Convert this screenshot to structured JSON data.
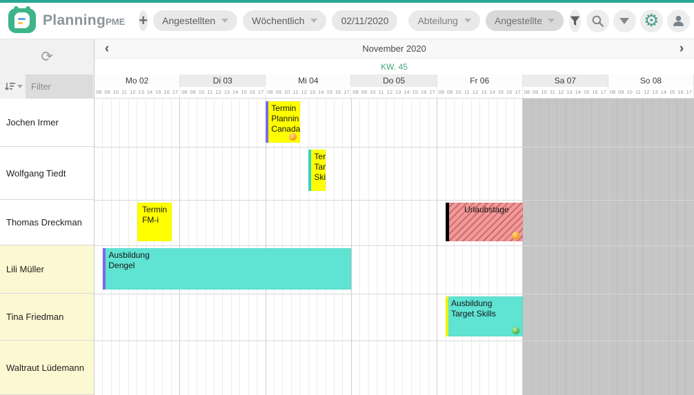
{
  "brand_colors": {
    "accent": "#2aa795",
    "logo_green": "#3eb489",
    "gear_green": "#4a9d8f",
    "kw_green": "#3fa876",
    "weekend_gray": "#c6c6c6",
    "row_highlight": "#fcf8d2"
  },
  "icons": {
    "plus": "+",
    "refresh": "⟳",
    "gear": "⚙",
    "prev": "‹",
    "next": "›"
  },
  "toolbar": {
    "brand": "Planning",
    "brand_suffix": "PME",
    "view_entity": "Angestellten",
    "view_mode": "Wöchentlich",
    "date": "02/11/2020",
    "filter_department": "Abteilung",
    "filter_employee": "Angestellte"
  },
  "sidebar": {
    "filter_placeholder": "Filter",
    "employees": [
      {
        "name": "Jochen Irmer",
        "highlighted": false
      },
      {
        "name": "Wolfgang Tiedt",
        "highlighted": false
      },
      {
        "name": "Thomas Dreckman",
        "highlighted": false
      },
      {
        "name": "Lili Müller",
        "highlighted": true
      },
      {
        "name": "Tina Friedman",
        "highlighted": true
      },
      {
        "name": "Waltraut Lüdemann",
        "highlighted": true
      }
    ]
  },
  "calendar": {
    "title": "November 2020",
    "week_label": "KW. 45",
    "days": [
      {
        "label": "Mo 02",
        "weekend": false
      },
      {
        "label": "Di 03",
        "weekend": false
      },
      {
        "label": "Mi 04",
        "weekend": false
      },
      {
        "label": "Do 05",
        "weekend": false
      },
      {
        "label": "Fr 06",
        "weekend": false
      },
      {
        "label": "Sa 07",
        "weekend": true
      },
      {
        "label": "So 08",
        "weekend": true
      }
    ],
    "hours": [
      "08",
      "09",
      "10",
      "11",
      "12",
      "13",
      "14",
      "15",
      "16",
      "17"
    ],
    "events": [
      {
        "employee": "Jochen Irmer",
        "row": 0,
        "text": "Termin\nPlannin\nCanada",
        "day_start": 2,
        "hour_start": 8,
        "day_end": 2,
        "hour_end": 12,
        "bg": "#ffff00",
        "stripe": "#7b68ee",
        "align": "left",
        "hatched": false,
        "emoji": "orange"
      },
      {
        "employee": "Wolfgang Tiedt",
        "row": 1,
        "text": "Ter\nTar\nSkil",
        "day_start": 2,
        "hour_start": 13,
        "day_end": 2,
        "hour_end": 15,
        "bg": "#ffff00",
        "stripe": "#2fd6c6",
        "align": "left",
        "hatched": false,
        "emoji": null
      },
      {
        "employee": "Thomas Dreckman",
        "row": 2,
        "text": "Termin\nFM-i",
        "day_start": 0,
        "hour_start": 13,
        "day_end": 0,
        "hour_end": 17,
        "bg": "#ffff00",
        "stripe": null,
        "align": "left",
        "hatched": false,
        "emoji": null
      },
      {
        "employee": "Thomas Dreckman",
        "row": 2,
        "text": "Urlaubstage",
        "day_start": 4,
        "hour_start": 9,
        "day_end": 4,
        "hour_end": 18,
        "bg": "#ef9b9b",
        "stripe": "#000000",
        "align": "center",
        "hatched": true,
        "emoji": "orange"
      },
      {
        "employee": "Lili Müller",
        "row": 3,
        "text": "Ausbildung\nDengel",
        "day_start": 0,
        "hour_start": 9,
        "day_end": 2,
        "hour_end": 18,
        "bg": "#5fe3d3",
        "stripe": "#7b68ee",
        "align": "left",
        "hatched": false,
        "emoji": null
      },
      {
        "employee": "Tina Friedman",
        "row": 4,
        "text": "Ausbildung\nTarget Skills",
        "day_start": 4,
        "hour_start": 9,
        "day_end": 4,
        "hour_end": 18,
        "bg": "#5fe3d3",
        "stripe": "#eef000",
        "align": "left",
        "hatched": false,
        "emoji": "green"
      }
    ]
  }
}
